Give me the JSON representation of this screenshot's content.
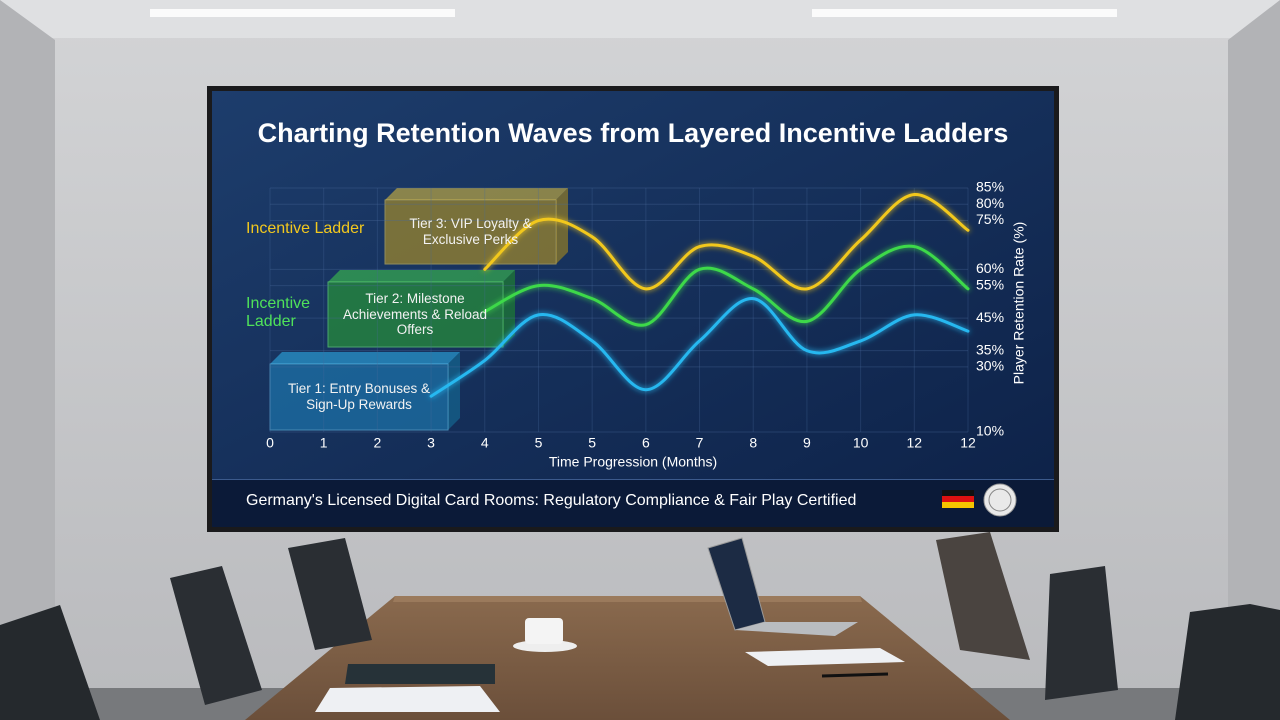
{
  "chart_data": {
    "type": "line",
    "title": "Charting Retention Waves from Layered Incentive Ladders",
    "ladder_labels": [
      "Incentive Ladder",
      "Incentive Ladder"
    ],
    "categories": [
      "0",
      "1",
      "2",
      "3",
      "4",
      "5",
      "5",
      "6",
      "7",
      "8",
      "9",
      "10",
      "12",
      "12"
    ],
    "x_label": "Time Progression (Months)",
    "y_label": "Player Retention Rate (%)",
    "ylim": [
      10,
      85
    ],
    "yticks": [
      {
        "value": 85,
        "label": "85%"
      },
      {
        "value": 80,
        "label": "80%"
      },
      {
        "value": 75,
        "label": "75%"
      },
      {
        "value": 60,
        "label": "60%"
      },
      {
        "value": 55,
        "label": "55%"
      },
      {
        "value": 45,
        "label": "45%"
      },
      {
        "value": 35,
        "label": "35%"
      },
      {
        "value": 30,
        "label": "30%"
      },
      {
        "value": 10,
        "label": "10%"
      }
    ],
    "grid": true,
    "series": [
      {
        "name": "Tier 3: VIP Loyalty & Exclusive Perks",
        "color": "#f2c81e",
        "values": [
          null,
          null,
          null,
          null,
          60,
          75,
          70,
          54,
          67,
          64,
          54,
          69,
          83,
          72
        ]
      },
      {
        "name": "Tier 2: Milestone Achievements & Reload Offers",
        "color": "#3ed94a",
        "values": [
          null,
          null,
          null,
          null,
          47,
          55,
          51,
          43,
          60,
          54,
          44,
          60,
          67,
          54
        ]
      },
      {
        "name": "Tier 1: Entry Bonuses & Sign-Up Rewards",
        "color": "#27b8f0",
        "values": [
          null,
          null,
          null,
          21,
          32,
          46,
          38,
          23,
          38,
          51,
          35,
          38,
          46,
          41
        ]
      }
    ]
  },
  "footer": {
    "text": "Germany's Licensed Digital Card Rooms: Regulatory Compliance & Fair Play Certified"
  }
}
